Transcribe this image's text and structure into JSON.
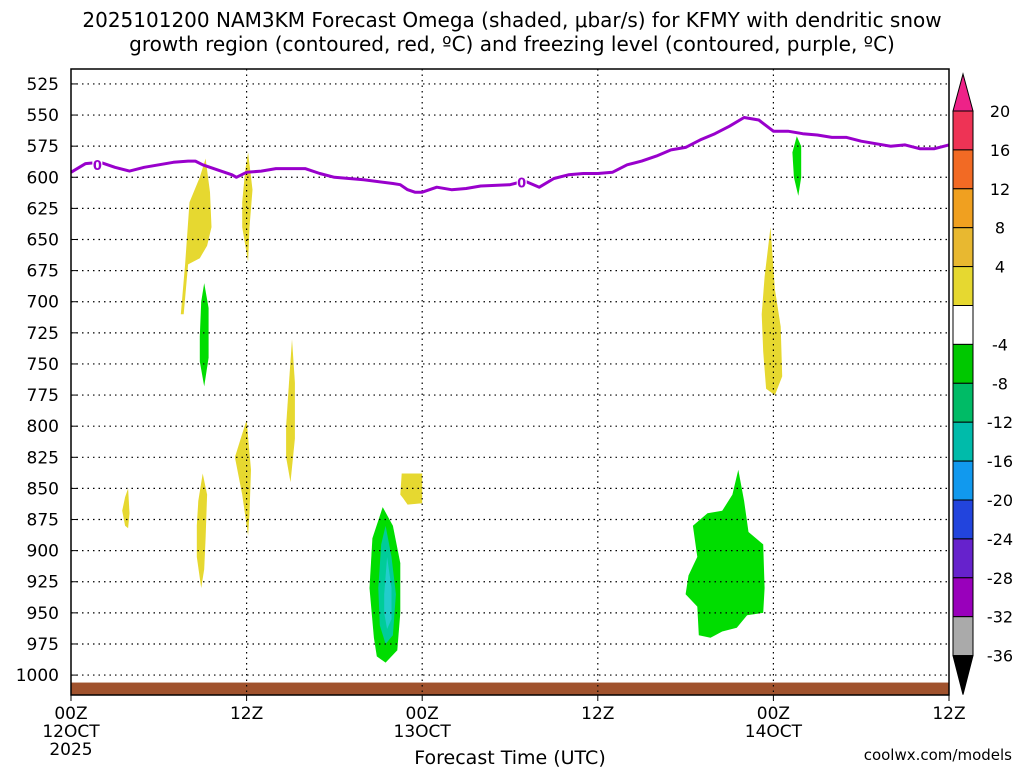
{
  "colors": {
    "background": "#ffffff",
    "freezing_line": "#9900cc",
    "ground": "#a0522d",
    "grid": "#000000",
    "yellow_fill": "#e6d830",
    "green_fill": "#00dd00",
    "teal_fill": "#00cc99",
    "cyan_fill": "#22cccc",
    "credit": "#cc2222"
  },
  "chart_data": {
    "type": "heatmap",
    "title_line1": "2025101200 NAM3KM Forecast Omega (shaded, μbar/s) for KFMY with dendritic snow",
    "title_line2": "growth region (contoured, red, ºC) and freezing level (contoured, purple, ºC)",
    "xlabel": "Forecast Time (UTC)",
    "credit": "coolwx.com/models",
    "x_range_hours": [
      0,
      60
    ],
    "y_levels_hpa": [
      525,
      550,
      575,
      600,
      625,
      650,
      675,
      700,
      725,
      750,
      775,
      800,
      825,
      850,
      875,
      900,
      925,
      950,
      975,
      1000
    ],
    "y_range_hpa": [
      513,
      1016
    ],
    "x_ticks": [
      {
        "hour": 0,
        "label": "00Z",
        "date": "12OCT",
        "year": "2025"
      },
      {
        "hour": 12,
        "label": "12Z",
        "date": "",
        "year": ""
      },
      {
        "hour": 24,
        "label": "00Z",
        "date": "13OCT",
        "year": ""
      },
      {
        "hour": 36,
        "label": "12Z",
        "date": "",
        "year": ""
      },
      {
        "hour": 48,
        "label": "00Z",
        "date": "14OCT",
        "year": ""
      },
      {
        "hour": 60,
        "label": "12Z",
        "date": "",
        "year": ""
      }
    ],
    "colorbar": {
      "labels": [
        "20",
        "16",
        "12",
        "8",
        "4",
        "-4",
        "-8",
        "-12",
        "-16",
        "-20",
        "-24",
        "-28",
        "-32",
        "-36"
      ],
      "bins": [
        {
          "color": "#ee3355"
        },
        {
          "color": "#f26a24"
        },
        {
          "color": "#f0a020"
        },
        {
          "color": "#e8b830"
        },
        {
          "color": "#e6d830"
        },
        {
          "color": "#ffffff"
        },
        {
          "color": "#00c800"
        },
        {
          "color": "#00bb66"
        },
        {
          "color": "#00bbaa"
        },
        {
          "color": "#1199ee"
        },
        {
          "color": "#2244dd"
        },
        {
          "color": "#6622cc"
        },
        {
          "color": "#9900bb"
        },
        {
          "color": "#aaaaaa"
        }
      ],
      "top_triangle": "#ee2288",
      "bottom_triangle": "#000000"
    },
    "freezing_level": {
      "label": "0",
      "label_points": [
        [
          1.8,
          590
        ],
        [
          30.8,
          604
        ]
      ],
      "points": [
        [
          0,
          596
        ],
        [
          1,
          589
        ],
        [
          2,
          588
        ],
        [
          3,
          592
        ],
        [
          4,
          595
        ],
        [
          5,
          592
        ],
        [
          6,
          590
        ],
        [
          7,
          588
        ],
        [
          8,
          587
        ],
        [
          8.5,
          587
        ],
        [
          9,
          590
        ],
        [
          10,
          594
        ],
        [
          11,
          598
        ],
        [
          11.3,
          600
        ],
        [
          12,
          596
        ],
        [
          13,
          595
        ],
        [
          14,
          593
        ],
        [
          15,
          593
        ],
        [
          16,
          593
        ],
        [
          17,
          597
        ],
        [
          18,
          600
        ],
        [
          20,
          602
        ],
        [
          22,
          605
        ],
        [
          22.5,
          606
        ],
        [
          23,
          610
        ],
        [
          23.5,
          612
        ],
        [
          24,
          612
        ],
        [
          25,
          608
        ],
        [
          26,
          610
        ],
        [
          27,
          609
        ],
        [
          28,
          607
        ],
        [
          30,
          606
        ],
        [
          31,
          603
        ],
        [
          32,
          608
        ],
        [
          33,
          601
        ],
        [
          34,
          598
        ],
        [
          35,
          597
        ],
        [
          36,
          597
        ],
        [
          37,
          596
        ],
        [
          38,
          590
        ],
        [
          39,
          587
        ],
        [
          40,
          583
        ],
        [
          41,
          578
        ],
        [
          42,
          576
        ],
        [
          43,
          570
        ],
        [
          44,
          565
        ],
        [
          45,
          559
        ],
        [
          46,
          552
        ],
        [
          47,
          554
        ],
        [
          48,
          563
        ],
        [
          49,
          563
        ],
        [
          50,
          565
        ],
        [
          51,
          566
        ],
        [
          52,
          568
        ],
        [
          53,
          568
        ],
        [
          54,
          571
        ],
        [
          55,
          573
        ],
        [
          56,
          575
        ],
        [
          57,
          574
        ],
        [
          58,
          577
        ],
        [
          59,
          577
        ],
        [
          60,
          574
        ]
      ]
    },
    "omega_regions": [
      {
        "range": "4 to 8",
        "color": "#e6d830",
        "points": [
          [
            7.5,
            710
          ],
          [
            7.8,
            670
          ],
          [
            8.1,
            620
          ],
          [
            8.8,
            600
          ],
          [
            9.2,
            585
          ],
          [
            9.5,
            612
          ],
          [
            9.6,
            640
          ],
          [
            9.3,
            655
          ],
          [
            8.8,
            665
          ],
          [
            8.0,
            670
          ],
          [
            7.7,
            710
          ]
        ]
      },
      {
        "range": "4 to 8",
        "color": "#e6d830",
        "points": [
          [
            11.7,
            620
          ],
          [
            11.9,
            595
          ],
          [
            12.1,
            580
          ],
          [
            12.4,
            610
          ],
          [
            12.2,
            640
          ],
          [
            12.1,
            668
          ],
          [
            11.7,
            640
          ]
        ]
      },
      {
        "range": "-4 to -8",
        "color": "#00dd00",
        "points": [
          [
            8.8,
            728
          ],
          [
            8.9,
            700
          ],
          [
            9.1,
            685
          ],
          [
            9.4,
            705
          ],
          [
            9.4,
            745
          ],
          [
            9.1,
            768
          ],
          [
            8.8,
            748
          ]
        ]
      },
      {
        "range": "4 to 8",
        "color": "#e6d830",
        "points": [
          [
            14.7,
            800
          ],
          [
            14.9,
            765
          ],
          [
            15.1,
            730
          ],
          [
            15.3,
            765
          ],
          [
            15.3,
            810
          ],
          [
            15.0,
            845
          ],
          [
            14.7,
            825
          ]
        ]
      },
      {
        "range": "4 to 8",
        "color": "#e6d830",
        "points": [
          [
            11.2,
            825
          ],
          [
            11.6,
            810
          ],
          [
            12.0,
            795
          ],
          [
            12.3,
            835
          ],
          [
            12.2,
            870
          ],
          [
            12.1,
            888
          ],
          [
            11.7,
            855
          ]
        ]
      },
      {
        "range": "4 to 8",
        "color": "#e6d830",
        "points": [
          [
            8.6,
            880
          ],
          [
            8.7,
            860
          ],
          [
            9.0,
            838
          ],
          [
            9.3,
            855
          ],
          [
            9.2,
            890
          ],
          [
            9.1,
            915
          ],
          [
            8.9,
            930
          ],
          [
            8.6,
            905
          ]
        ]
      },
      {
        "range": "4 to 8",
        "color": "#e6d830",
        "points": [
          [
            3.5,
            868
          ],
          [
            3.7,
            857
          ],
          [
            3.9,
            850
          ],
          [
            4.0,
            870
          ],
          [
            3.9,
            882
          ],
          [
            3.7,
            880
          ]
        ]
      },
      {
        "range": "4 to 8",
        "color": "#e6d830",
        "points": [
          [
            22.5,
            855
          ],
          [
            22.6,
            838
          ],
          [
            23.2,
            838
          ],
          [
            24.0,
            838
          ],
          [
            24.0,
            862
          ],
          [
            23.0,
            863
          ],
          [
            22.7,
            858
          ]
        ]
      },
      {
        "range": "-4 to -8",
        "color": "#00dd00",
        "points": [
          [
            20.7,
            970
          ],
          [
            20.4,
            930
          ],
          [
            20.6,
            890
          ],
          [
            21.3,
            865
          ],
          [
            22.0,
            880
          ],
          [
            22.5,
            910
          ],
          [
            22.5,
            950
          ],
          [
            22.3,
            980
          ],
          [
            21.5,
            990
          ],
          [
            20.9,
            985
          ]
        ]
      },
      {
        "range": "-8 to -12",
        "color": "#00cc99",
        "points": [
          [
            21.0,
            930
          ],
          [
            21.2,
            895
          ],
          [
            21.5,
            880
          ],
          [
            21.9,
            905
          ],
          [
            22.2,
            935
          ],
          [
            22.0,
            968
          ],
          [
            21.5,
            975
          ],
          [
            21.1,
            960
          ]
        ]
      },
      {
        "range": "-12 to -16",
        "color": "#22cccc",
        "points": [
          [
            21.4,
            935
          ],
          [
            21.6,
            905
          ],
          [
            21.9,
            930
          ],
          [
            21.9,
            955
          ],
          [
            21.6,
            963
          ],
          [
            21.4,
            950
          ]
        ]
      },
      {
        "range": "-4 to -8",
        "color": "#00dd00",
        "points": [
          [
            42.5,
            880
          ],
          [
            43.5,
            870
          ],
          [
            44.5,
            868
          ],
          [
            45.2,
            855
          ],
          [
            45.6,
            835
          ],
          [
            46.0,
            860
          ],
          [
            46.3,
            885
          ],
          [
            47.3,
            895
          ],
          [
            47.4,
            930
          ],
          [
            47.3,
            950
          ],
          [
            46.2,
            952
          ],
          [
            45.5,
            962
          ],
          [
            44.5,
            965
          ],
          [
            43.7,
            970
          ],
          [
            42.9,
            968
          ],
          [
            42.8,
            945
          ],
          [
            42.0,
            935
          ],
          [
            42.2,
            920
          ],
          [
            42.8,
            905
          ]
        ]
      },
      {
        "range": "4 to 8",
        "color": "#e6d830",
        "points": [
          [
            47.2,
            710
          ],
          [
            47.4,
            680
          ],
          [
            47.8,
            640
          ],
          [
            48.1,
            690
          ],
          [
            48.5,
            720
          ],
          [
            48.6,
            760
          ],
          [
            48.1,
            775
          ],
          [
            47.5,
            770
          ],
          [
            47.3,
            740
          ]
        ]
      },
      {
        "range": "-4 to -8",
        "color": "#00dd00",
        "points": [
          [
            49.3,
            580
          ],
          [
            49.6,
            567
          ],
          [
            49.9,
            575
          ],
          [
            49.9,
            600
          ],
          [
            49.7,
            615
          ],
          [
            49.4,
            600
          ]
        ]
      }
    ],
    "ground": {
      "color": "#a0522d",
      "pressure_top_hpa": 1006,
      "pressure_bottom_hpa": 1016
    }
  }
}
